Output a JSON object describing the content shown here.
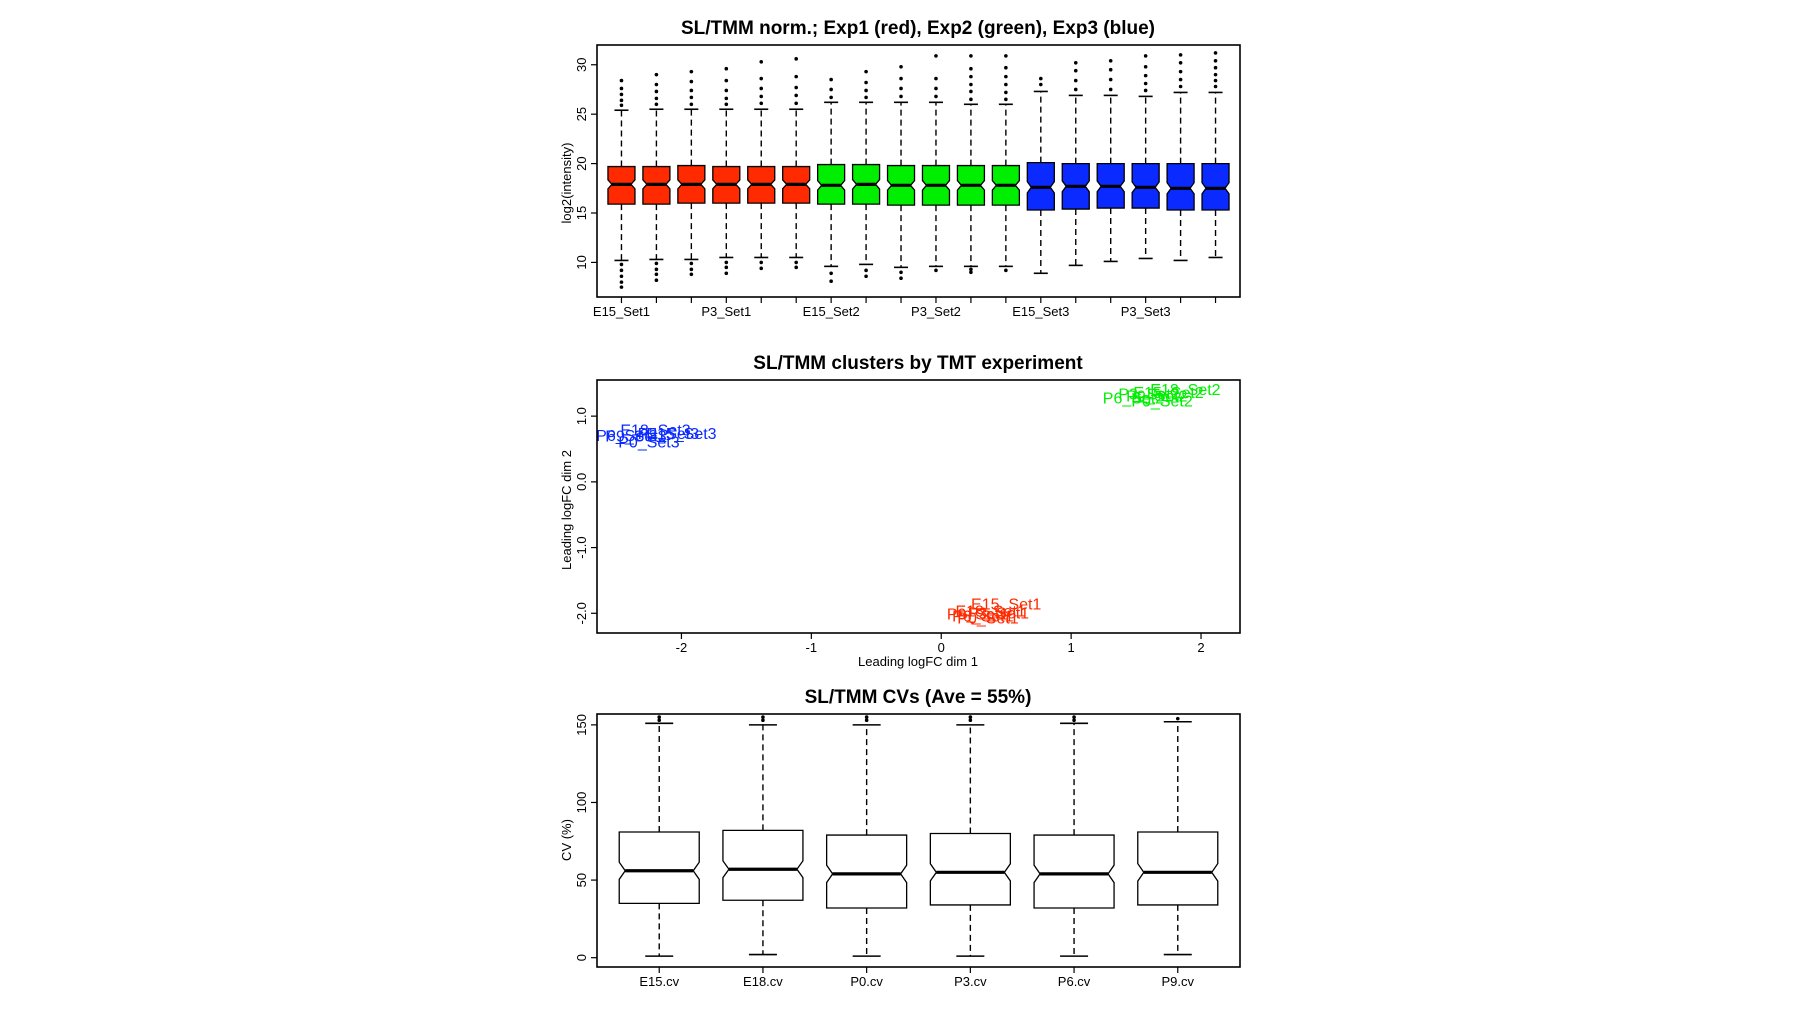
{
  "chart_data": [
    {
      "type": "boxplot",
      "title": "SL/TMM norm.; Exp1 (red), Exp2 (green), Exp3 (blue)",
      "xlabel": "",
      "ylabel": "log2(intensity)",
      "ylim": [
        6.5,
        32
      ],
      "yticks": [
        10,
        15,
        20,
        25,
        30
      ],
      "xtick_labels": [
        "E15_Set1",
        "P3_Set1",
        "E15_Set2",
        "P3_Set2",
        "E15_Set3",
        "P3_Set3"
      ],
      "xtick_positions": [
        1,
        4,
        7,
        10,
        13,
        16
      ],
      "colors": {
        "exp1": "#ff2a00",
        "exp2": "#00ee00",
        "exp3": "#0a2aff"
      },
      "boxes": [
        {
          "group": "exp1",
          "q1": 15.9,
          "median": 17.9,
          "q3": 19.7,
          "wlo": 10.2,
          "whi": 25.4,
          "out_lo": [
            9.8,
            9.2,
            8.6,
            8.0,
            7.5
          ],
          "out_hi": [
            25.9,
            26.4,
            27.0,
            27.6,
            28.4
          ]
        },
        {
          "group": "exp1",
          "q1": 15.9,
          "median": 17.9,
          "q3": 19.7,
          "wlo": 10.3,
          "whi": 25.5,
          "out_lo": [
            9.9,
            9.3,
            8.8,
            8.2
          ],
          "out_hi": [
            26.0,
            26.6,
            27.3,
            28.0,
            29.0
          ]
        },
        {
          "group": "exp1",
          "q1": 16.0,
          "median": 17.9,
          "q3": 19.8,
          "wlo": 10.3,
          "whi": 25.5,
          "out_lo": [
            9.9,
            9.3,
            8.8
          ],
          "out_hi": [
            26.0,
            26.7,
            27.4,
            28.3,
            29.3
          ]
        },
        {
          "group": "exp1",
          "q1": 16.0,
          "median": 17.9,
          "q3": 19.7,
          "wlo": 10.5,
          "whi": 25.5,
          "out_lo": [
            10.0,
            9.5,
            8.9
          ],
          "out_hi": [
            26.0,
            26.6,
            27.4,
            28.4,
            29.6
          ]
        },
        {
          "group": "exp1",
          "q1": 16.0,
          "median": 17.9,
          "q3": 19.7,
          "wlo": 10.5,
          "whi": 25.5,
          "out_lo": [
            10.0,
            9.4
          ],
          "out_hi": [
            26.1,
            26.8,
            27.6,
            28.6,
            30.3
          ]
        },
        {
          "group": "exp1",
          "q1": 16.0,
          "median": 17.9,
          "q3": 19.7,
          "wlo": 10.5,
          "whi": 25.5,
          "out_lo": [
            10.0,
            9.5
          ],
          "out_hi": [
            26.1,
            26.9,
            27.7,
            28.8,
            30.6
          ]
        },
        {
          "group": "exp2",
          "q1": 15.9,
          "median": 17.8,
          "q3": 19.9,
          "wlo": 9.6,
          "whi": 26.2,
          "out_lo": [
            8.9,
            8.1
          ],
          "out_hi": [
            26.7,
            27.5,
            28.5
          ]
        },
        {
          "group": "exp2",
          "q1": 15.9,
          "median": 17.9,
          "q3": 19.9,
          "wlo": 9.8,
          "whi": 26.2,
          "out_lo": [
            9.2,
            8.6
          ],
          "out_hi": [
            26.7,
            27.4,
            28.2,
            29.3
          ]
        },
        {
          "group": "exp2",
          "q1": 15.8,
          "median": 17.8,
          "q3": 19.8,
          "wlo": 9.5,
          "whi": 26.2,
          "out_lo": [
            9.0,
            8.4
          ],
          "out_hi": [
            26.8,
            27.6,
            28.6,
            29.8
          ]
        },
        {
          "group": "exp2",
          "q1": 15.8,
          "median": 17.8,
          "q3": 19.8,
          "wlo": 9.6,
          "whi": 26.2,
          "out_lo": [
            9.2
          ],
          "out_hi": [
            26.8,
            27.6,
            28.6,
            30.9
          ]
        },
        {
          "group": "exp2",
          "q1": 15.8,
          "median": 17.8,
          "q3": 19.8,
          "wlo": 9.6,
          "whi": 26.0,
          "out_lo": [
            9.3,
            9.0
          ],
          "out_hi": [
            26.5,
            27.3,
            28.0,
            28.8,
            29.6,
            30.9
          ]
        },
        {
          "group": "exp2",
          "q1": 15.8,
          "median": 17.8,
          "q3": 19.8,
          "wlo": 9.6,
          "whi": 26.0,
          "out_lo": [
            9.2
          ],
          "out_hi": [
            26.5,
            27.2,
            28.0,
            28.8,
            29.7,
            30.9
          ]
        },
        {
          "group": "exp3",
          "q1": 15.3,
          "median": 17.6,
          "q3": 20.1,
          "wlo": 8.9,
          "whi": 27.3,
          "out_lo": [],
          "out_hi": [
            28.0,
            28.6
          ]
        },
        {
          "group": "exp3",
          "q1": 15.4,
          "median": 17.7,
          "q3": 20.0,
          "wlo": 9.7,
          "whi": 26.9,
          "out_lo": [],
          "out_hi": [
            27.5,
            28.4,
            29.4,
            30.2
          ]
        },
        {
          "group": "exp3",
          "q1": 15.5,
          "median": 17.7,
          "q3": 20.0,
          "wlo": 10.1,
          "whi": 26.9,
          "out_lo": [],
          "out_hi": [
            27.5,
            28.5,
            29.5,
            30.4
          ]
        },
        {
          "group": "exp3",
          "q1": 15.5,
          "median": 17.6,
          "q3": 20.0,
          "wlo": 10.4,
          "whi": 26.8,
          "out_lo": [],
          "out_hi": [
            27.4,
            28.1,
            28.9,
            29.8,
            30.9
          ]
        },
        {
          "group": "exp3",
          "q1": 15.3,
          "median": 17.5,
          "q3": 20.0,
          "wlo": 10.2,
          "whi": 27.2,
          "out_lo": [],
          "out_hi": [
            27.8,
            28.5,
            29.3,
            30.2,
            31.0
          ]
        },
        {
          "group": "exp3",
          "q1": 15.3,
          "median": 17.5,
          "q3": 20.0,
          "wlo": 10.5,
          "whi": 27.2,
          "out_lo": [],
          "out_hi": [
            27.8,
            28.4,
            29.0,
            29.7,
            30.4,
            31.2
          ]
        }
      ]
    },
    {
      "type": "scatter",
      "title": "SL/TMM clusters by TMT experiment",
      "xlabel": "Leading logFC dim 1",
      "ylabel": "Leading logFC dim 2",
      "xlim": [
        -2.65,
        2.3
      ],
      "ylim": [
        -2.3,
        1.55
      ],
      "xticks": [
        -2,
        -1,
        0,
        1,
        2
      ],
      "yticks": [
        -2.0,
        -1.0,
        0.0,
        1.0
      ],
      "points": [
        {
          "label": "E18_Set3",
          "x": -2.2,
          "y": 0.78,
          "color": "#0a2aff"
        },
        {
          "label": "P3_Set3",
          "x": -2.1,
          "y": 0.73,
          "color": "#0a2aff"
        },
        {
          "label": "E15_Set3",
          "x": -2.0,
          "y": 0.73,
          "color": "#0a2aff"
        },
        {
          "label": "P6_Set3",
          "x": -2.42,
          "y": 0.7,
          "color": "#0a2aff"
        },
        {
          "label": "P9_Set3",
          "x": -2.35,
          "y": 0.69,
          "color": "#0a2aff"
        },
        {
          "label": "P0_Set3",
          "x": -2.25,
          "y": 0.6,
          "color": "#0a2aff"
        },
        {
          "label": "E18_Set2",
          "x": 1.88,
          "y": 1.4,
          "color": "#00ee00"
        },
        {
          "label": "E15_Set2",
          "x": 1.75,
          "y": 1.35,
          "color": "#00ee00"
        },
        {
          "label": "P3_Set2",
          "x": 1.6,
          "y": 1.33,
          "color": "#00ee00"
        },
        {
          "label": "P9_Set2",
          "x": 1.66,
          "y": 1.3,
          "color": "#00ee00"
        },
        {
          "label": "P6_Set2",
          "x": 1.48,
          "y": 1.27,
          "color": "#00ee00"
        },
        {
          "label": "P0_Set2",
          "x": 1.7,
          "y": 1.22,
          "color": "#00ee00"
        },
        {
          "label": "E15_Set1",
          "x": 0.5,
          "y": -1.87,
          "color": "#ff2a00"
        },
        {
          "label": "E18_Set1",
          "x": 0.38,
          "y": -1.97,
          "color": "#ff2a00"
        },
        {
          "label": "P3_Set1",
          "x": 0.44,
          "y": -2.0,
          "color": "#ff2a00"
        },
        {
          "label": "P9_Set1",
          "x": 0.28,
          "y": -2.02,
          "color": "#ff2a00"
        },
        {
          "label": "P6_Set1",
          "x": 0.32,
          "y": -2.05,
          "color": "#ff2a00"
        },
        {
          "label": "P0_Set1",
          "x": 0.36,
          "y": -2.08,
          "color": "#ff2a00"
        }
      ]
    },
    {
      "type": "boxplot",
      "title": "SL/TMM CVs (Ave = 55%)",
      "xlabel": "",
      "ylabel": "CV (%)",
      "ylim": [
        -6,
        157
      ],
      "yticks": [
        0,
        50,
        100,
        150
      ],
      "xtick_labels": [
        "E15.cv",
        "E18.cv",
        "P0.cv",
        "P3.cv",
        "P6.cv",
        "P9.cv"
      ],
      "xtick_positions": [
        1,
        2,
        3,
        4,
        5,
        6
      ],
      "colors": {
        "box": "#ffffff"
      },
      "boxes": [
        {
          "q1": 35,
          "median": 56,
          "q3": 81,
          "wlo": 1,
          "whi": 151,
          "out_lo": [],
          "out_hi": [
            153,
            155
          ]
        },
        {
          "q1": 37,
          "median": 57,
          "q3": 82,
          "wlo": 2,
          "whi": 150,
          "out_lo": [],
          "out_hi": [
            153,
            155
          ]
        },
        {
          "q1": 32,
          "median": 54,
          "q3": 79,
          "wlo": 1,
          "whi": 150,
          "out_lo": [],
          "out_hi": [
            153,
            155
          ]
        },
        {
          "q1": 34,
          "median": 55,
          "q3": 80,
          "wlo": 1,
          "whi": 150,
          "out_lo": [],
          "out_hi": [
            153,
            155
          ]
        },
        {
          "q1": 32,
          "median": 54,
          "q3": 79,
          "wlo": 1,
          "whi": 151,
          "out_lo": [],
          "out_hi": [
            153,
            155
          ]
        },
        {
          "q1": 34,
          "median": 55,
          "q3": 81,
          "wlo": 2,
          "whi": 152,
          "out_lo": [],
          "out_hi": [
            154
          ]
        }
      ]
    }
  ]
}
